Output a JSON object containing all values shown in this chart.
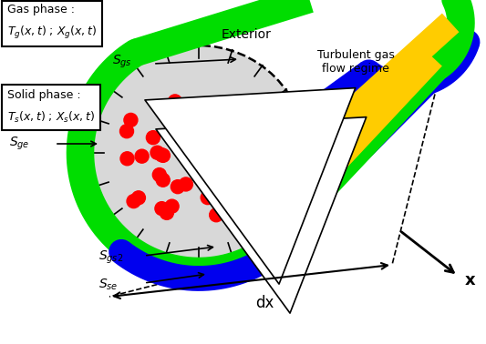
{
  "background_color": "#ffffff",
  "green_color": "#00dd00",
  "blue_color": "#0000ee",
  "yellow_color": "#ffcc00",
  "red_dot_color": "#ff0000",
  "circle_fill": "#d8d8d8",
  "circle_edge": "#000000",
  "hatch_fill": "#ffaa44",
  "hatch_edge": "#cc6600",
  "gray_arrow": "#888888",
  "box1_text": "Gas phase :\n$T_g(x,t)$ ; $X_g(x,t)$",
  "box2_text": "Solid phase :\n$T_s(x,t)$ ; $X_s(x,t)$",
  "label_exterior": "Exterior",
  "label_turbulent": "Turbulent gas\nflow regime",
  "label_x": "x",
  "label_dx": "dx",
  "label_sgs": "$S_{gs}$",
  "label_sge": "$S_{ge}$",
  "label_sgs2": "$S_{gs2}$",
  "label_sse": "$S_{se}$"
}
